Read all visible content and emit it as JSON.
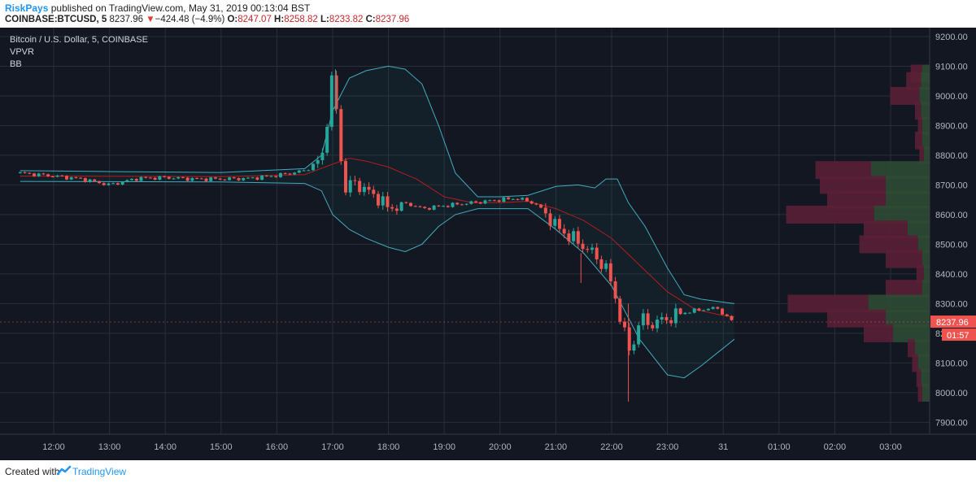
{
  "header": {
    "author": "RiskPays",
    "published_text": "published on TradingView.com, May 31, 2019 00:13:04 BST",
    "symbol": "COINBASE:BTCUSD, 5",
    "last": "8237.96",
    "arrow": "▼",
    "change": "−424.48 (−4.9%)",
    "o_label": "O:",
    "o_value": "8247.07",
    "h_label": "H:",
    "h_value": "8258.82",
    "l_label": "L:",
    "l_value": "8233.82",
    "c_label": "C:",
    "c_value": "8237.96"
  },
  "legend": {
    "title": "Bitcoin / U.S. Dollar, 5, COINBASE",
    "ind1": "VPVR",
    "ind2": "BB"
  },
  "price_badge": {
    "price": "8237.96",
    "countdown": "01:57"
  },
  "footer": {
    "created_with": "Created with",
    "brand": "TradingView"
  },
  "colors": {
    "background": "#131722",
    "grid": "#2a2e39",
    "up": "#26a69a",
    "down": "#ef5350",
    "bb_band": "#4dd0e1",
    "bb_basis": "#b71c1c",
    "vol_up": "#2e4a33",
    "vol_down": "#5a1f35",
    "axis_text": "#b2b5be",
    "author": "#2196f3"
  },
  "chart_data": {
    "type": "candlestick",
    "title": "Bitcoin / U.S. Dollar, 5, COINBASE",
    "x_ticks": [
      "12:00",
      "13:00",
      "14:00",
      "15:00",
      "16:00",
      "17:00",
      "18:00",
      "19:00",
      "20:00",
      "21:00",
      "22:00",
      "23:00",
      "31",
      "01:00",
      "02:00",
      "03:00"
    ],
    "y_ticks": [
      "9200.00",
      "9100.00",
      "9000.00",
      "8900.00",
      "8800.00",
      "8700.00",
      "8600.00",
      "8500.00",
      "8400.00",
      "8300.00",
      "8200.00",
      "8100.00",
      "8000.00",
      "7900.00"
    ],
    "ylim": [
      7860,
      9230
    ],
    "last_price": 8237.96,
    "price_path": [
      [
        11.4,
        8740
      ],
      [
        12.0,
        8730
      ],
      [
        12.5,
        8720
      ],
      [
        13.0,
        8700
      ],
      [
        13.5,
        8722
      ],
      [
        14.0,
        8725
      ],
      [
        14.5,
        8720
      ],
      [
        15.0,
        8720
      ],
      [
        15.5,
        8722
      ],
      [
        16.0,
        8732
      ],
      [
        16.5,
        8748
      ],
      [
        16.75,
        8780
      ],
      [
        16.85,
        8820
      ],
      [
        16.95,
        9020
      ],
      [
        17.0,
        9060
      ],
      [
        17.1,
        8900
      ],
      [
        17.2,
        8680
      ],
      [
        17.4,
        8710
      ],
      [
        17.6,
        8680
      ],
      [
        17.8,
        8660
      ],
      [
        18.0,
        8620
      ],
      [
        18.3,
        8640
      ],
      [
        18.6,
        8620
      ],
      [
        19.0,
        8630
      ],
      [
        19.5,
        8640
      ],
      [
        20.0,
        8650
      ],
      [
        20.3,
        8655
      ],
      [
        20.6,
        8640
      ],
      [
        20.8,
        8610
      ],
      [
        21.0,
        8560
      ],
      [
        21.3,
        8520
      ],
      [
        21.6,
        8480
      ],
      [
        21.9,
        8420
      ],
      [
        22.1,
        8300
      ],
      [
        22.25,
        8180
      ],
      [
        22.35,
        8130
      ],
      [
        22.5,
        8250
      ],
      [
        22.7,
        8230
      ],
      [
        23.0,
        8250
      ],
      [
        23.3,
        8270
      ],
      [
        23.6,
        8280
      ],
      [
        23.9,
        8285
      ],
      [
        24.05,
        8255
      ],
      [
        24.2,
        8238
      ]
    ],
    "bollinger": {
      "upper": [
        [
          11.4,
          8748
        ],
        [
          13.0,
          8745
        ],
        [
          15.0,
          8742
        ],
        [
          16.5,
          8755
        ],
        [
          16.8,
          8800
        ],
        [
          17.0,
          8950
        ],
        [
          17.3,
          9060
        ],
        [
          17.6,
          9085
        ],
        [
          18.0,
          9100
        ],
        [
          18.3,
          9090
        ],
        [
          18.6,
          9040
        ],
        [
          18.9,
          8900
        ],
        [
          19.2,
          8740
        ],
        [
          19.6,
          8660
        ],
        [
          20.0,
          8660
        ],
        [
          20.5,
          8665
        ],
        [
          21.0,
          8695
        ],
        [
          21.4,
          8700
        ],
        [
          21.7,
          8690
        ],
        [
          21.9,
          8720
        ],
        [
          22.1,
          8720
        ],
        [
          22.3,
          8640
        ],
        [
          22.6,
          8560
        ],
        [
          23.0,
          8420
        ],
        [
          23.3,
          8330
        ],
        [
          23.6,
          8315
        ],
        [
          24.0,
          8305
        ],
        [
          24.2,
          8300
        ]
      ],
      "basis": [
        [
          11.4,
          8730
        ],
        [
          15.0,
          8728
        ],
        [
          16.5,
          8735
        ],
        [
          17.0,
          8770
        ],
        [
          17.3,
          8790
        ],
        [
          17.6,
          8780
        ],
        [
          18.0,
          8760
        ],
        [
          18.5,
          8720
        ],
        [
          19.0,
          8660
        ],
        [
          19.5,
          8640
        ],
        [
          20.0,
          8640
        ],
        [
          20.5,
          8645
        ],
        [
          21.0,
          8620
        ],
        [
          21.5,
          8580
        ],
        [
          22.0,
          8520
        ],
        [
          22.5,
          8430
        ],
        [
          23.0,
          8340
        ],
        [
          23.5,
          8280
        ],
        [
          24.0,
          8260
        ],
        [
          24.2,
          8255
        ]
      ],
      "lower": [
        [
          11.4,
          8712
        ],
        [
          15.0,
          8710
        ],
        [
          16.5,
          8705
        ],
        [
          16.8,
          8680
        ],
        [
          17.0,
          8600
        ],
        [
          17.3,
          8550
        ],
        [
          17.6,
          8520
        ],
        [
          18.0,
          8490
        ],
        [
          18.3,
          8475
        ],
        [
          18.6,
          8500
        ],
        [
          18.9,
          8560
        ],
        [
          19.2,
          8600
        ],
        [
          19.6,
          8620
        ],
        [
          20.0,
          8620
        ],
        [
          20.5,
          8620
        ],
        [
          21.0,
          8550
        ],
        [
          21.5,
          8470
        ],
        [
          22.0,
          8360
        ],
        [
          22.5,
          8180
        ],
        [
          23.0,
          8060
        ],
        [
          23.3,
          8050
        ],
        [
          23.6,
          8090
        ],
        [
          24.0,
          8150
        ],
        [
          24.2,
          8180
        ]
      ]
    },
    "volume_profile": [
      {
        "price": 9075,
        "up": 0.05,
        "down": 0.08
      },
      {
        "price": 9050,
        "up": 0.06,
        "down": 0.1
      },
      {
        "price": 9000,
        "up": 0.07,
        "down": 0.2
      },
      {
        "price": 8950,
        "up": 0.06,
        "down": 0.04
      },
      {
        "price": 8900,
        "up": 0.05,
        "down": 0.03
      },
      {
        "price": 8850,
        "up": 0.05,
        "down": 0.05
      },
      {
        "price": 8800,
        "up": 0.04,
        "down": 0.03
      },
      {
        "price": 8750,
        "up": 0.4,
        "down": 0.38
      },
      {
        "price": 8700,
        "up": 0.3,
        "down": 0.45
      },
      {
        "price": 8650,
        "up": 0.3,
        "down": 0.4
      },
      {
        "price": 8600,
        "up": 0.38,
        "down": 0.6
      },
      {
        "price": 8550,
        "up": 0.15,
        "down": 0.3
      },
      {
        "price": 8500,
        "up": 0.08,
        "down": 0.4
      },
      {
        "price": 8450,
        "up": 0.05,
        "down": 0.25
      },
      {
        "price": 8400,
        "up": 0.04,
        "down": 0.05
      },
      {
        "price": 8350,
        "up": 0.05,
        "down": 0.25
      },
      {
        "price": 8300,
        "up": 0.42,
        "down": 0.55
      },
      {
        "price": 8250,
        "up": 0.3,
        "down": 0.4
      },
      {
        "price": 8200,
        "up": 0.25,
        "down": 0.2
      },
      {
        "price": 8150,
        "up": 0.1,
        "down": 0.05
      },
      {
        "price": 8100,
        "up": 0.08,
        "down": 0.04
      },
      {
        "price": 8050,
        "up": 0.06,
        "down": 0.03
      },
      {
        "price": 8000,
        "up": 0.05,
        "down": 0.03
      }
    ]
  }
}
